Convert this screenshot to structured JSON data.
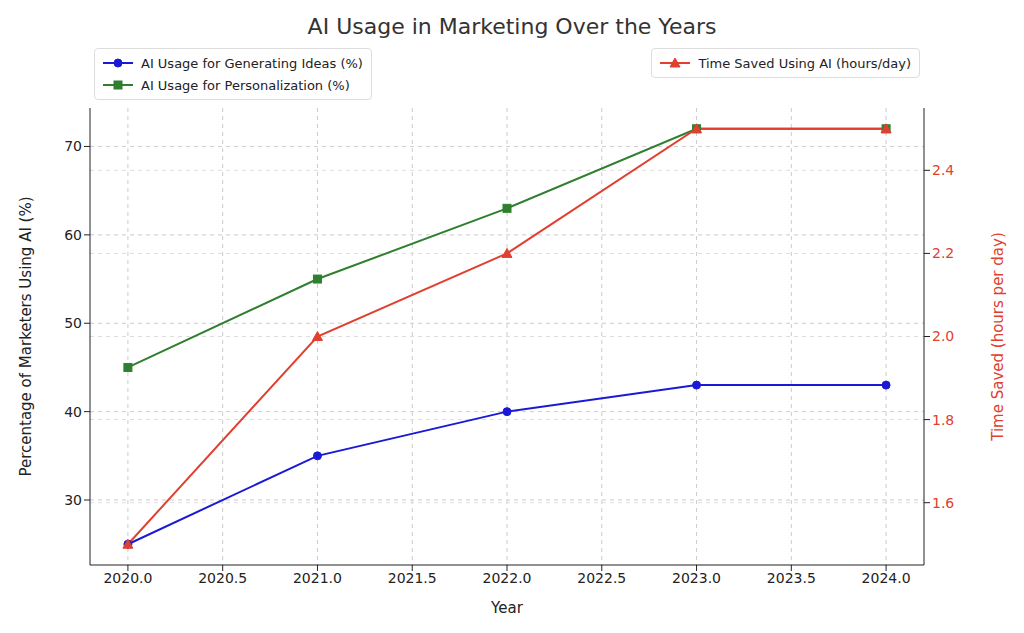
{
  "chart_data": {
    "type": "line",
    "title": "AI Usage in Marketing Over the Years",
    "xlabel": "Year",
    "ylabel": "Percentage of Marketers Using AI (%)",
    "y2label": "Time Saved (hours per day)",
    "x": [
      2020,
      2021,
      2022,
      2023,
      2024
    ],
    "xlim": [
      2019.8,
      2024.2
    ],
    "xticks": [
      {
        "value": 2020,
        "label": "2020.0"
      },
      {
        "value": 2020.5,
        "label": "2020.5"
      },
      {
        "value": 2021,
        "label": "2021.0"
      },
      {
        "value": 2021.5,
        "label": "2021.5"
      },
      {
        "value": 2022,
        "label": "2022.0"
      },
      {
        "value": 2022.5,
        "label": "2022.5"
      },
      {
        "value": 2023,
        "label": "2023.0"
      },
      {
        "value": 2023.5,
        "label": "2023.5"
      },
      {
        "value": 2024,
        "label": "2024.0"
      }
    ],
    "ylim": [
      22.65,
      74.35
    ],
    "yticks": [
      30,
      40,
      50,
      60,
      70
    ],
    "y2lim": [
      1.45,
      2.55
    ],
    "y2ticks": [
      1.6,
      1.8,
      {
        "value": 2,
        "label": "2.0"
      },
      2.2,
      2.4
    ],
    "grid": true,
    "legend": "upper left",
    "series": [
      {
        "name": "AI Usage for Generating Ideas (%)",
        "color": "#1a1ad6",
        "marker": "circle",
        "values": [
          25,
          35,
          40,
          43,
          43
        ]
      },
      {
        "name": "AI Usage for Personalization (%)",
        "color": "#2f7f2f",
        "marker": "square",
        "values": [
          45,
          55,
          63,
          72,
          72
        ]
      },
      {
        "name": "Time Saved Using AI (hours/day)",
        "color": "#e0402f",
        "marker": "triangle",
        "axis": "y2",
        "legend": "upper right",
        "values": [
          1.5,
          2.0,
          2.2,
          2.5,
          2.5
        ]
      }
    ]
  }
}
